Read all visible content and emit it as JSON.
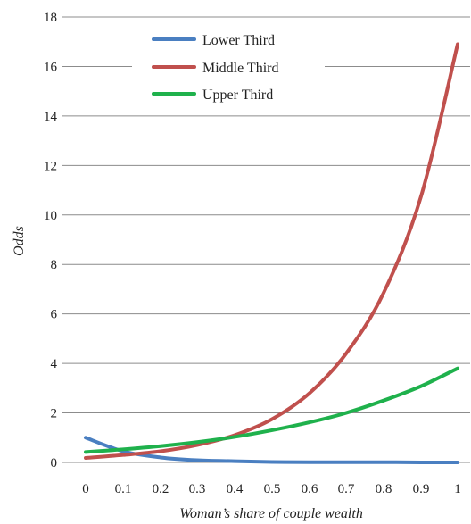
{
  "chart_data": {
    "type": "line",
    "xlabel": "Woman’s share of couple wealth",
    "ylabel": "Odds",
    "x": [
      0,
      0.1,
      0.2,
      0.3,
      0.4,
      0.5,
      0.6,
      0.7,
      0.8,
      0.9,
      1
    ],
    "x_tick_labels": [
      "0",
      "0.1",
      "0.2",
      "0.3",
      "0.4",
      "0.5",
      "0.6",
      "0.7",
      "0.8",
      "0.9",
      "1"
    ],
    "y_ticks": [
      0,
      2,
      4,
      6,
      8,
      10,
      12,
      14,
      16,
      18
    ],
    "ylim": [
      0,
      18
    ],
    "grid": true,
    "legend_position": "top-center",
    "series": [
      {
        "name": "Lower Third",
        "color": "#4a7fc1",
        "values": [
          1.0,
          0.45,
          0.2,
          0.09,
          0.05,
          0.02,
          0.01,
          0.01,
          0.01,
          0.0,
          0.0
        ]
      },
      {
        "name": "Middle Third",
        "color": "#c0504d",
        "values": [
          0.18,
          0.3,
          0.45,
          0.7,
          1.1,
          1.75,
          2.8,
          4.4,
          6.85,
          10.75,
          16.9
        ]
      },
      {
        "name": "Upper Third",
        "color": "#1fb14c",
        "values": [
          0.42,
          0.53,
          0.66,
          0.82,
          1.03,
          1.3,
          1.62,
          2.0,
          2.5,
          3.08,
          3.8
        ]
      }
    ]
  }
}
